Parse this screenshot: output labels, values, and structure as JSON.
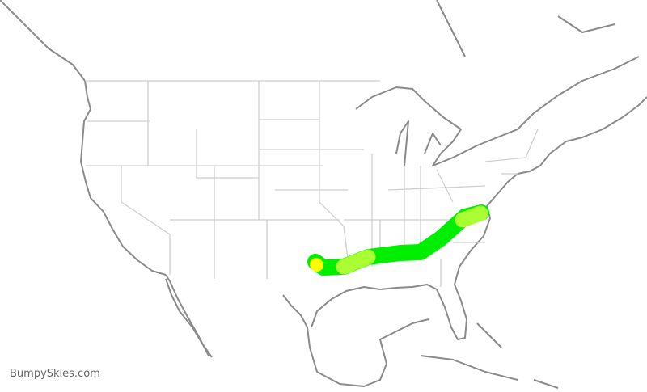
{
  "map": {
    "watermark": "BumpySkies.com",
    "colors": {
      "coastline": "#8a8a8a",
      "state_borders": "#cfcfcf",
      "route_smooth": "#00ee00",
      "route_light": "#aaff33",
      "route_moderate": "#ffff00"
    },
    "route_segments": [
      {
        "level": "smooth"
      },
      {
        "level": "light"
      },
      {
        "level": "light"
      },
      {
        "level": "moderate"
      }
    ]
  }
}
